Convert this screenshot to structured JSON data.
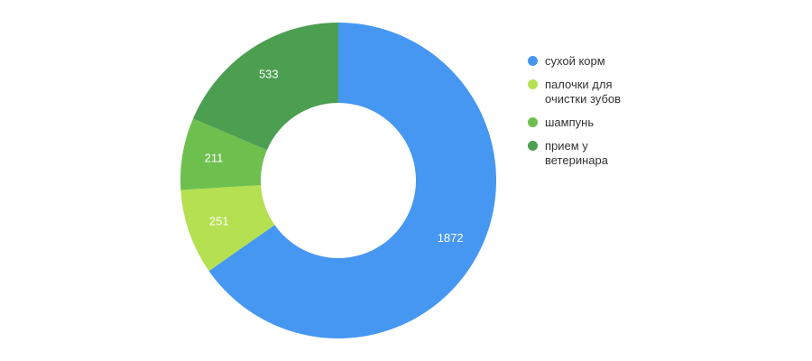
{
  "chart_data": {
    "type": "pie",
    "donut": true,
    "title": "",
    "categories": [
      "сухой корм",
      "палочки для очистки зубов",
      "шампунь",
      "прием у ветеринара"
    ],
    "values": [
      1872,
      251,
      211,
      533
    ],
    "labels": [
      "1872",
      "251",
      "211",
      "533"
    ],
    "colors": [
      "#4697f2",
      "#b4e051",
      "#6ec04e",
      "#4c9e51"
    ],
    "label_color": "#ffffff",
    "background": "#ffffff",
    "legend_position": "right",
    "start_angle_deg": 0,
    "direction": "clockwise",
    "inner_radius_ratio": 0.49
  },
  "legend": {
    "items": [
      {
        "label": "сухой корм",
        "color": "#4697f2"
      },
      {
        "label": "палочки для очистки зубов",
        "color": "#b4e051"
      },
      {
        "label": "шампунь",
        "color": "#6ec04e"
      },
      {
        "label": "прием у ветеринара",
        "color": "#4c9e51"
      }
    ]
  }
}
